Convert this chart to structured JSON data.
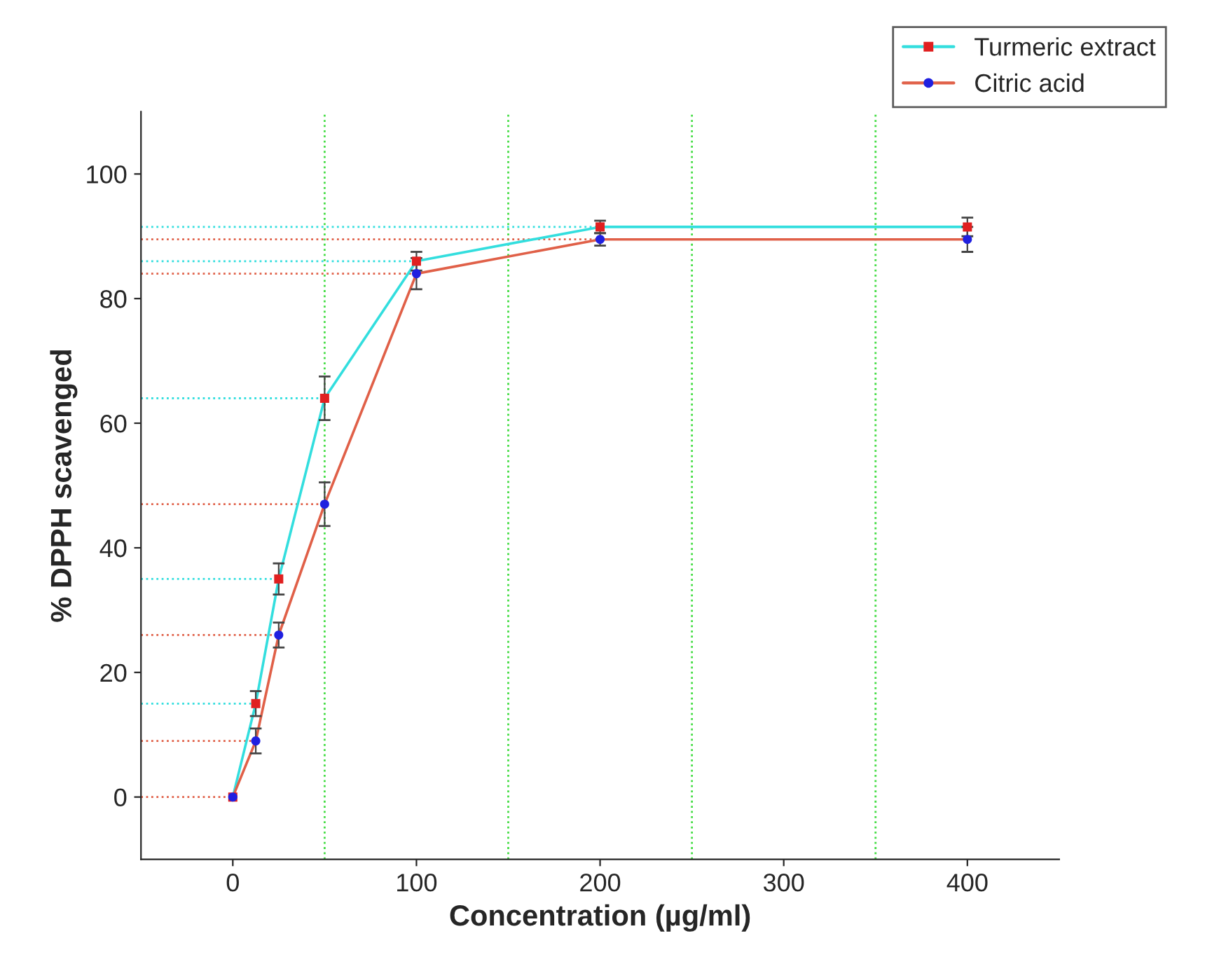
{
  "chart_data": {
    "type": "line",
    "xlabel": "Concentration (µg/ml)",
    "ylabel": "% DPPH scavenged",
    "x": [
      0,
      12.5,
      25,
      50,
      100,
      200,
      400
    ],
    "series": [
      {
        "name": "Turmeric extract",
        "color": "#33dede",
        "colors": [
          "#e02020",
          "#e02020",
          "#e02020",
          "#e02020",
          "#e02020",
          "#e02020",
          "#e02020"
        ],
        "marker": "square",
        "values": [
          0,
          15,
          35,
          64,
          86,
          91.5,
          91.5
        ],
        "errors": [
          null,
          2,
          2.5,
          3.5,
          1.5,
          1,
          1.5
        ]
      },
      {
        "name": "Citric acid",
        "color": "#e06048",
        "colors": [
          "#2020e0",
          "#2020e0",
          "#2020e0",
          "#2020e0",
          "#2020e0",
          "#2020e0",
          "#2020e0"
        ],
        "marker": "circle",
        "values": [
          0,
          9,
          26,
          47,
          84,
          89.5,
          89.5
        ],
        "errors": [
          null,
          2,
          2,
          3.5,
          2.5,
          1,
          2
        ]
      }
    ],
    "xlim": [
      -50,
      450
    ],
    "ylim": [
      -10,
      110
    ],
    "xticks": [
      0,
      100,
      200,
      300,
      400
    ],
    "yticks": [
      0,
      20,
      40,
      60,
      80,
      100
    ],
    "grid": false,
    "legend": "top right",
    "line_style": "solid",
    "ref_lines": [
      {
        "axis": "x",
        "value": 50,
        "color": "#44dd44",
        "line_style": "dotted"
      },
      {
        "axis": "x",
        "value": 150,
        "color": "#44dd44",
        "line_style": "dotted"
      },
      {
        "axis": "x",
        "value": 250,
        "color": "#44dd44",
        "line_style": "dotted"
      },
      {
        "axis": "x",
        "value": 350,
        "color": "#44dd44",
        "line_style": "dotted"
      },
      {
        "axis": "y",
        "value": 91.5,
        "color": "#33dede",
        "line_style": "dotted"
      },
      {
        "axis": "y",
        "value": 86,
        "color": "#33dede",
        "line_style": "dotted"
      },
      {
        "axis": "y",
        "value": 64,
        "color": "#33dede",
        "line_style": "dotted"
      },
      {
        "axis": "y",
        "value": 35,
        "color": "#33dede",
        "line_style": "dotted"
      },
      {
        "axis": "y",
        "value": 15,
        "color": "#33dede",
        "line_style": "dotted"
      },
      {
        "axis": "y",
        "value": 89.5,
        "color": "#e06048",
        "line_style": "dotted"
      },
      {
        "axis": "y",
        "value": 84,
        "color": "#e06048",
        "line_style": "dotted"
      },
      {
        "axis": "y",
        "value": 47,
        "color": "#e06048",
        "line_style": "dotted"
      },
      {
        "axis": "y",
        "value": 26,
        "color": "#e06048",
        "line_style": "dotted"
      },
      {
        "axis": "y",
        "value": 9,
        "color": "#e06048",
        "line_style": "dotted"
      },
      {
        "axis": "y",
        "value": 0,
        "color": "#e06048",
        "line_style": "dotted"
      }
    ]
  }
}
